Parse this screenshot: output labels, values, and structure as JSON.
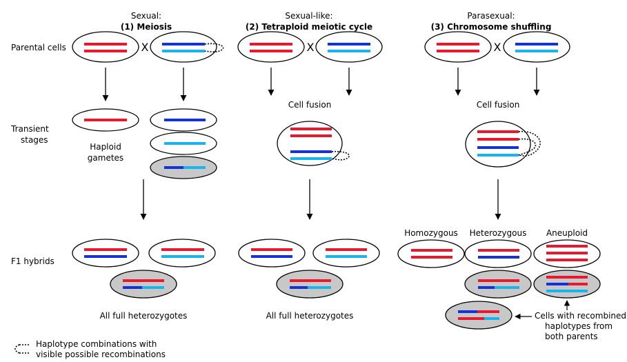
{
  "colors": {
    "red": "#e8192c",
    "dark_blue": "#1532d4",
    "light_blue": "#19b4ee",
    "hybrid_fill": "#c8c8c8",
    "outline": "#000000"
  },
  "columns": [
    {
      "category": "Sexual:",
      "name": "(1) Meiosis"
    },
    {
      "category": "Sexual-like:",
      "name": "(2) Tetraploid meiotic cycle"
    },
    {
      "category": "Parasexual:",
      "name": "(3) Chromosome shuffling"
    }
  ],
  "rows": {
    "parental": "Parental cells",
    "transient_1": "Transient",
    "transient_2": "stages",
    "f1": "F1 hybrids"
  },
  "cross_symbol": "X",
  "labels": {
    "haploid_1": "Haploid",
    "haploid_2": "gametes",
    "fusion_2": "Cell fusion",
    "fusion_3": "Cell fusion",
    "full_het_1": "All full heterozygotes",
    "full_het_2": "All full heterozygotes",
    "homozygous": "Homozygous",
    "heterozygous": "Heterozygous",
    "aneuploid": "Aneuploid",
    "recomb_1": "Cells with recombined",
    "recomb_2": "haplotypes from",
    "recomb_3": "both parents"
  },
  "legend": {
    "line_1": "Haplotype combinations with",
    "line_2": "visible possible recombinations"
  }
}
